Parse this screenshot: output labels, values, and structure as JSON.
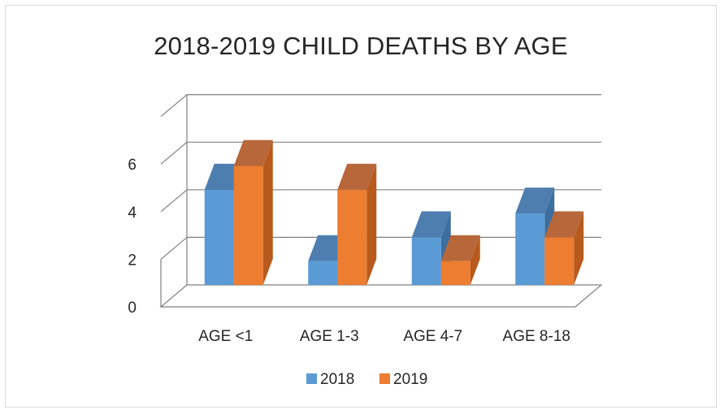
{
  "chart_data": {
    "type": "bar",
    "title": "2018-2019 CHILD DEATHS BY AGE",
    "categories": [
      "AGE <1",
      "AGE 1-3",
      "AGE 4-7",
      "AGE 8-18"
    ],
    "series": [
      {
        "name": "2018",
        "values": [
          4,
          1,
          2,
          3
        ]
      },
      {
        "name": "2019",
        "values": [
          5,
          4,
          1,
          2
        ]
      }
    ],
    "ylim": [
      0,
      6
    ],
    "yticks": [
      "0",
      "2",
      "4",
      "6"
    ],
    "grid": true,
    "legend": "bottom",
    "style": "3d-clustered-column",
    "colors": {
      "2018": {
        "front": "#5b9bd5",
        "top": "#4e7eb0",
        "side": "#3d6ea0"
      },
      "2019": {
        "front": "#ed7d31",
        "top": "#b7673a",
        "side": "#b85a1c"
      },
      "grid": "#808080",
      "text": "#262626"
    }
  }
}
